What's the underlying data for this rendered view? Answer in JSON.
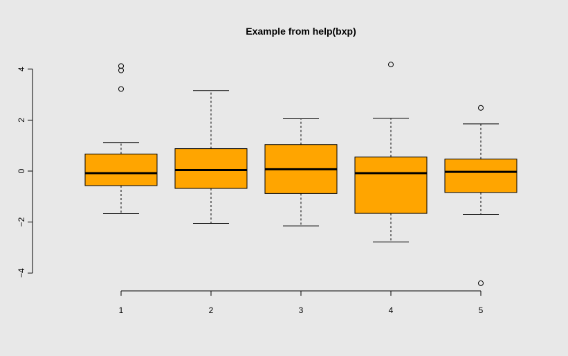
{
  "chart_data": {
    "type": "boxplot",
    "title": "Example from help(bxp)",
    "xlabel": "",
    "ylabel": "",
    "ylim": [
      -4.5,
      4.5
    ],
    "y_ticks": [
      -4,
      -2,
      0,
      2,
      4
    ],
    "y_tick_labels": [
      "−4",
      "−2",
      "0",
      "2",
      "4"
    ],
    "categories": [
      "1",
      "2",
      "3",
      "4",
      "5"
    ],
    "box_color": "#FFA500",
    "background_color": "#e8e8e8",
    "grid": false,
    "boxes": [
      {
        "label": "1",
        "whisker_low": -1.67,
        "q1": -0.57,
        "median": -0.08,
        "q3": 0.67,
        "whisker_high": 1.12,
        "outliers": [
          3.22,
          3.95,
          4.12
        ]
      },
      {
        "label": "2",
        "whisker_low": -2.05,
        "q1": -0.68,
        "median": 0.04,
        "q3": 0.88,
        "whisker_high": 3.16,
        "outliers": []
      },
      {
        "label": "3",
        "whisker_low": -2.15,
        "q1": -0.88,
        "median": 0.07,
        "q3": 1.04,
        "whisker_high": 2.05,
        "outliers": []
      },
      {
        "label": "4",
        "whisker_low": -2.78,
        "q1": -1.66,
        "median": -0.08,
        "q3": 0.55,
        "whisker_high": 2.07,
        "outliers": [
          4.18
        ]
      },
      {
        "label": "5",
        "whisker_low": -1.7,
        "q1": -0.84,
        "median": -0.03,
        "q3": 0.47,
        "whisker_high": 1.85,
        "outliers": [
          2.48,
          -4.4
        ]
      }
    ]
  }
}
